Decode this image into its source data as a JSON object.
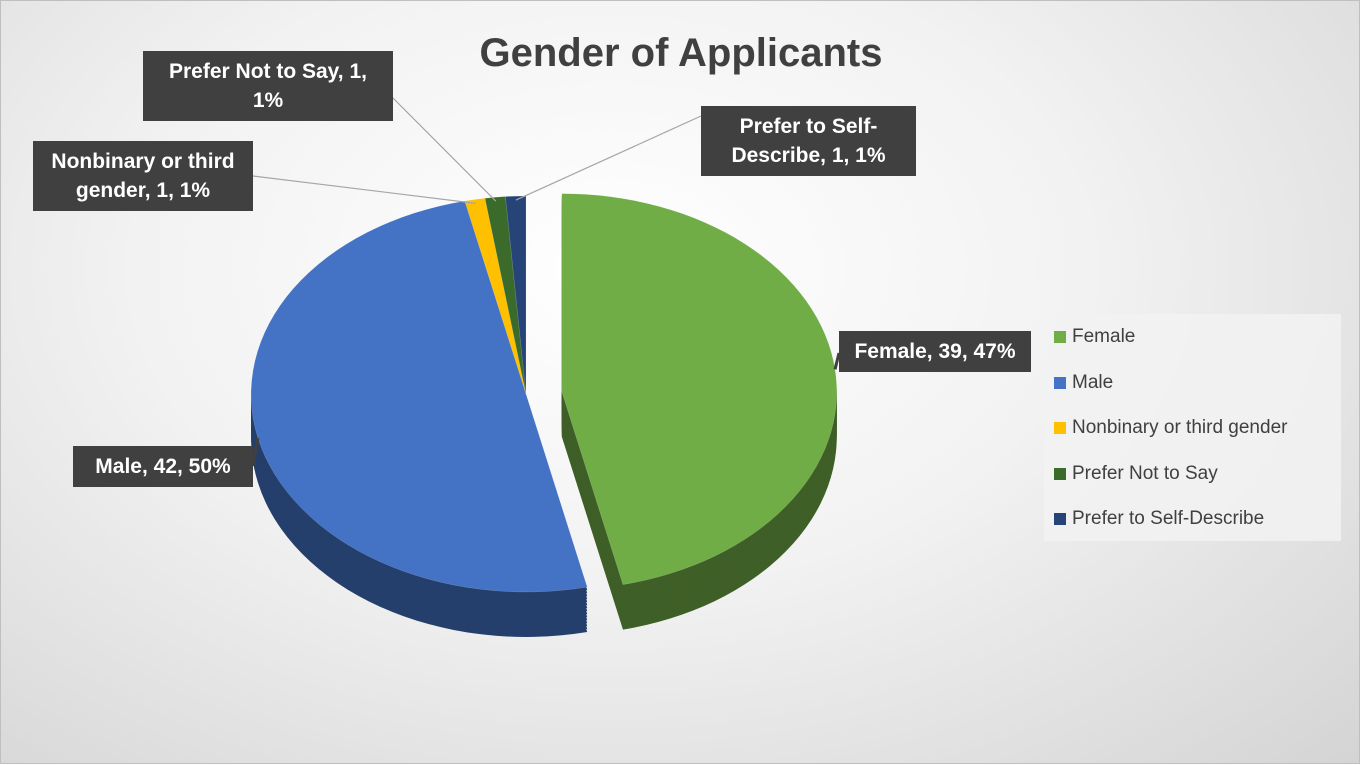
{
  "chart_data": {
    "type": "pie",
    "title": "Gender of Applicants",
    "categories": [
      "Female",
      "Male",
      "Nonbinary or third gender",
      "Prefer Not to Say",
      "Prefer to Self-Describe"
    ],
    "values": [
      39,
      42,
      1,
      1,
      1
    ],
    "value_labels": [
      "Female, 39, 47%",
      "Male, 42, 50%",
      "Nonbinary or third gender, 1, 1%",
      "Prefer Not to Say, 1, 1%",
      "Prefer to Self-Describe, 1, 1%"
    ],
    "colors": [
      "#70ad47",
      "#4472c4",
      "#ffc000",
      "#3a6b2a",
      "#264478"
    ],
    "legend": "right"
  }
}
